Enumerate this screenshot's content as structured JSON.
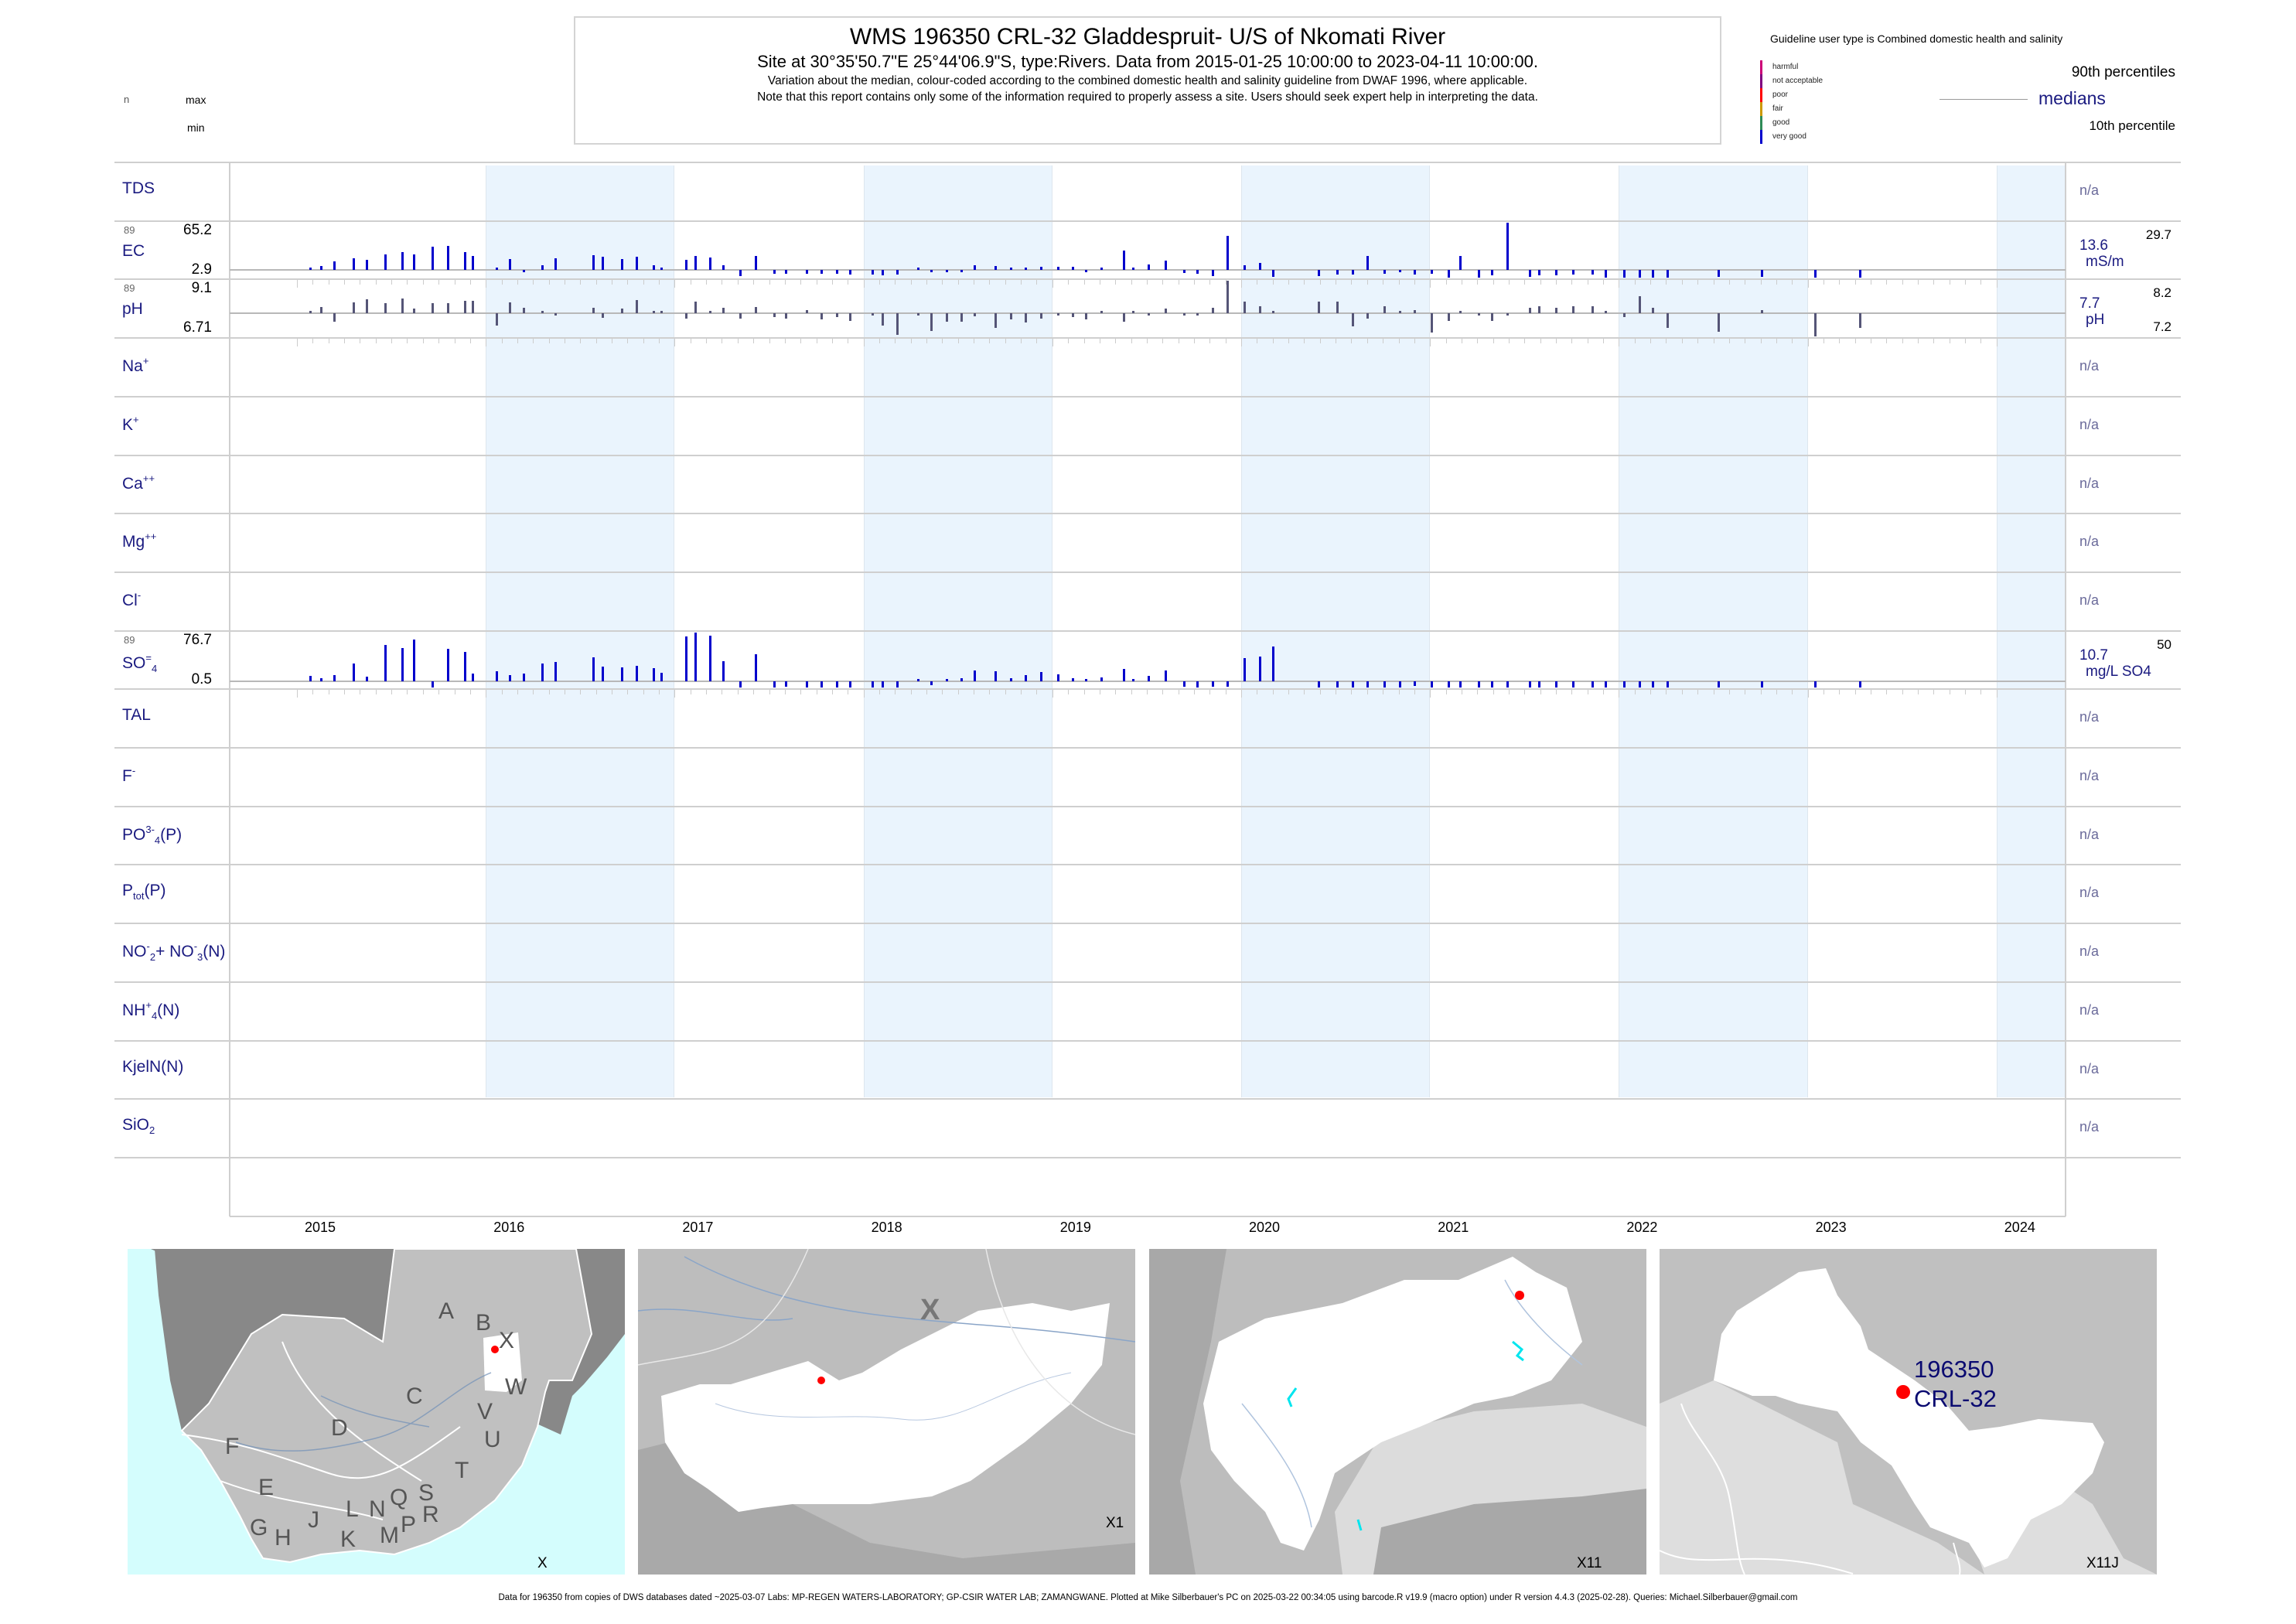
{
  "header": {
    "title": "WMS 196350 CRL-32 Gladdespruit- U/S of Nkomati River",
    "subtitle": "Site at 30°35'50.7\"E 25°44'06.9\"S, type:Rivers.  Data from 2015-01-25 10:00:00 to 2023-04-11 10:00:00.",
    "line3": "Variation about the median,  colour-coded according to the combined domestic health and salinity guideline from DWAF 1996, where applicable.",
    "line4": "Note that this report contains only some of the information required to properly assess a site. Users should seek expert help in interpreting the data."
  },
  "left_header": {
    "n": "n",
    "max": "max",
    "min": "min"
  },
  "legend": {
    "title": "Guideline user type is Combined domestic health and salinity",
    "classes": [
      {
        "label": "harmful",
        "color": "#cc0077"
      },
      {
        "label": "not acceptable",
        "color": "#800080"
      },
      {
        "label": "poor",
        "color": "#ff0000"
      },
      {
        "label": "fair",
        "color": "#cc9900"
      },
      {
        "label": "good",
        "color": "#2e8b57"
      },
      {
        "label": "very good",
        "color": "#0000cc"
      }
    ],
    "p90": "90th percentiles",
    "medians": "medians",
    "p10": "10th percentile"
  },
  "rows": [
    {
      "label": [
        {
          "t": "TDS"
        }
      ],
      "right": "n/a"
    },
    {
      "label": [
        {
          "t": "EC"
        }
      ],
      "n": "89",
      "max": "65.2",
      "min": "2.9",
      "median": "13.6",
      "unit": "mS/m",
      "p90": "29.7",
      "series": "EC"
    },
    {
      "label": [
        {
          "t": "pH"
        }
      ],
      "n": "89",
      "max": "9.1",
      "min": "6.71",
      "median": "7.7",
      "unit": "pH",
      "p90": "8.2",
      "p10": "7.2",
      "series": "pH"
    },
    {
      "label": [
        {
          "t": "Na"
        },
        {
          "t": "+",
          "s": "sup"
        }
      ],
      "right": "n/a"
    },
    {
      "label": [
        {
          "t": "K"
        },
        {
          "t": "+",
          "s": "sup"
        }
      ],
      "right": "n/a"
    },
    {
      "label": [
        {
          "t": "Ca"
        },
        {
          "t": "++",
          "s": "sup"
        }
      ],
      "right": "n/a"
    },
    {
      "label": [
        {
          "t": "Mg"
        },
        {
          "t": "++",
          "s": "sup"
        }
      ],
      "right": "n/a"
    },
    {
      "label": [
        {
          "t": "Cl"
        },
        {
          "t": "-",
          "s": "sup"
        }
      ],
      "right": "n/a"
    },
    {
      "label": [
        {
          "t": "SO"
        },
        {
          "t": "=",
          "s": "sup"
        },
        {
          "t": "4",
          "s": "sub"
        }
      ],
      "n": "89",
      "max": "76.7",
      "min": "0.5",
      "median": "10.7",
      "unit": "mg/L SO4",
      "p90": "50",
      "series": "SO4"
    },
    {
      "label": [
        {
          "t": "TAL"
        }
      ],
      "right": "n/a"
    },
    {
      "label": [
        {
          "t": "F"
        },
        {
          "t": "-",
          "s": "sup"
        }
      ],
      "right": "n/a"
    },
    {
      "label": [
        {
          "t": "PO"
        },
        {
          "t": "3-",
          "s": "sup"
        },
        {
          "t": "4",
          "s": "sub"
        },
        {
          "t": "(P)"
        }
      ],
      "right": "n/a"
    },
    {
      "label": [
        {
          "t": "P"
        },
        {
          "t": "tot",
          "s": "sub"
        },
        {
          "t": "(P)"
        }
      ],
      "right": "n/a"
    },
    {
      "label": [
        {
          "t": "NO"
        },
        {
          "t": "-",
          "s": "sup"
        },
        {
          "t": "2",
          "s": "sub"
        },
        {
          "t": "+ NO"
        },
        {
          "t": "-",
          "s": "sup"
        },
        {
          "t": "3",
          "s": "sub"
        },
        {
          "t": "(N)"
        }
      ],
      "right": "n/a"
    },
    {
      "label": [
        {
          "t": "NH"
        },
        {
          "t": "+",
          "s": "sup"
        },
        {
          "t": "4",
          "s": "sub"
        },
        {
          "t": "(N)"
        }
      ],
      "right": "n/a"
    },
    {
      "label": [
        {
          "t": "KjelN(N)"
        }
      ],
      "right": "n/a"
    },
    {
      "label": [
        {
          "t": "SiO"
        },
        {
          "t": "2",
          "s": "sub"
        }
      ],
      "right": "n/a"
    }
  ],
  "chart_data": {
    "type": "bar",
    "title": "WMS 196350 CRL-32 Gladdespruit- U/S of Nkomati River",
    "xlabel": "",
    "x_ticks": [
      "2015",
      "2016",
      "2017",
      "2018",
      "2019",
      "2020",
      "2021",
      "2022",
      "2023",
      "2024"
    ],
    "xlim": [
      2015,
      2024.2
    ],
    "shaded_years": [
      2016,
      2018,
      2020,
      2022,
      2024
    ],
    "bar_baseline": "median",
    "x": [
      2015.07,
      2015.13,
      2015.2,
      2015.3,
      2015.37,
      2015.47,
      2015.56,
      2015.62,
      2015.72,
      2015.8,
      2015.89,
      2015.93,
      2016.06,
      2016.13,
      2016.2,
      2016.3,
      2016.37,
      2016.57,
      2016.62,
      2016.72,
      2016.8,
      2016.89,
      2016.93,
      2017.06,
      2017.11,
      2017.19,
      2017.26,
      2017.35,
      2017.43,
      2017.53,
      2017.59,
      2017.7,
      2017.78,
      2017.86,
      2017.93,
      2018.05,
      2018.1,
      2018.18,
      2018.29,
      2018.36,
      2018.44,
      2018.52,
      2018.59,
      2018.7,
      2018.78,
      2018.86,
      2018.94,
      2019.03,
      2019.11,
      2019.18,
      2019.26,
      2019.38,
      2019.43,
      2019.51,
      2019.6,
      2019.7,
      2019.77,
      2019.85,
      2019.93,
      2020.02,
      2020.1,
      2020.17,
      2020.41,
      2020.51,
      2020.59,
      2020.67,
      2020.76,
      2020.84,
      2020.92,
      2021.01,
      2021.1,
      2021.16,
      2021.26,
      2021.33,
      2021.41,
      2021.53,
      2021.58,
      2021.67,
      2021.76,
      2021.86,
      2021.93,
      2022.03,
      2022.11,
      2022.18,
      2022.26,
      2022.53,
      2022.76,
      2023.04,
      2023.28
    ],
    "series": [
      {
        "name": "EC",
        "unit": "mS/m",
        "color": "#0000cc",
        "median": 13.6,
        "min": 2.9,
        "max": 65.2,
        "values": [
          15.0,
          17.7,
          23.1,
          26.6,
          25.0,
          30.4,
          33.2,
          30.4,
          38.6,
          39.9,
          33.2,
          28.5,
          15.5,
          25.3,
          10.7,
          18.8,
          26.6,
          29.9,
          27.7,
          25.3,
          27.7,
          18.8,
          15.0,
          24.5,
          28.8,
          27.4,
          19.0,
          5.8,
          28.5,
          8.1,
          8.1,
          8.1,
          8.1,
          8.7,
          7.5,
          7.2,
          6.1,
          7.0,
          15.0,
          10.1,
          11.9,
          12.4,
          18.8,
          17.9,
          15.0,
          15.8,
          17.1,
          17.1,
          17.1,
          10.7,
          16.3,
          34.8,
          14.4,
          19.6,
          23.6,
          9.8,
          8.4,
          5.8,
          50.3,
          19.0,
          21.2,
          4.3,
          4.9,
          7.2,
          7.8,
          28.8,
          8.4,
          11.6,
          7.0,
          8.1,
          2.9,
          28.5,
          3.8,
          6.4,
          65.2,
          4.6,
          6.4,
          6.7,
          7.2,
          7.8,
          2.9,
          3.5,
          3.0,
          3.5,
          3.0,
          4.1,
          4.6,
          3.5,
          3.2
        ]
      },
      {
        "name": "pH",
        "unit": "pH",
        "color": "#555577",
        "median": 7.7,
        "min": 6.71,
        "max": 9.1,
        "values": [
          7.76,
          7.97,
          7.34,
          8.18,
          8.31,
          8.13,
          8.34,
          7.92,
          8.16,
          8.16,
          8.25,
          8.25,
          7.18,
          8.18,
          7.94,
          7.8,
          7.62,
          7.94,
          7.52,
          7.9,
          8.29,
          7.77,
          7.74,
          7.47,
          8.21,
          7.76,
          7.93,
          7.47,
          7.98,
          7.53,
          7.47,
          7.84,
          7.44,
          7.53,
          7.39,
          7.62,
          7.18,
          6.77,
          7.63,
          6.96,
          7.34,
          7.34,
          7.59,
          7.08,
          7.44,
          7.31,
          7.47,
          7.62,
          7.53,
          7.44,
          7.74,
          7.34,
          7.77,
          7.66,
          7.9,
          7.66,
          7.66,
          7.94,
          9.1,
          8.22,
          8.02,
          7.73,
          8.22,
          8.22,
          7.16,
          7.47,
          8.02,
          7.73,
          7.84,
          6.87,
          7.37,
          7.73,
          7.66,
          7.37,
          7.66,
          7.93,
          8.02,
          7.93,
          8.02,
          8.02,
          7.73,
          7.55,
          8.43,
          7.93,
          7.07,
          6.9,
          7.86,
          6.71,
          7.07
        ]
      },
      {
        "name": "SO4",
        "unit": "mg/L SO4",
        "color": "#0000cc",
        "median": 10.7,
        "min": 0.5,
        "max": 76.7,
        "values": [
          18.4,
          15.4,
          19.7,
          34.5,
          17.4,
          59.6,
          55.6,
          66.6,
          1.2,
          54.6,
          50.6,
          21.4,
          25.1,
          19.7,
          21.1,
          34.5,
          36.5,
          43.5,
          31.1,
          29.5,
          31.5,
          28.8,
          22.1,
          70.7,
          76.7,
          72.4,
          38.5,
          0.5,
          46.9,
          0.9,
          1.9,
          0.5,
          0.5,
          0.5,
          0.5,
          0.5,
          0.5,
          0.5,
          12.0,
          4.4,
          11.7,
          15.4,
          25.4,
          24.4,
          15.4,
          19.1,
          23.4,
          20.1,
          15.4,
          11.7,
          16.4,
          27.5,
          12.0,
          18.7,
          25.8,
          1.9,
          0.5,
          2.6,
          2.6,
          42.5,
          44.5,
          57.6,
          0.5,
          0.5,
          0.5,
          0.5,
          0.5,
          0.5,
          3.7,
          0.5,
          0.5,
          0.5,
          0.5,
          0.5,
          0.5,
          0.5,
          0.5,
          0.5,
          0.5,
          0.5,
          0.5,
          0.5,
          0.5,
          0.5,
          0.5,
          0.5,
          0.5,
          0.5,
          0.5
        ]
      }
    ]
  },
  "maps": [
    {
      "caption": "X",
      "region_labels": [
        "A",
        "B",
        "X",
        "C",
        "D",
        "W",
        "V",
        "U",
        "T",
        "F",
        "E",
        "S",
        "Q",
        "N",
        "L",
        "R",
        "P",
        "J",
        "G",
        "H",
        "K",
        "M"
      ]
    },
    {
      "caption": "X1",
      "big_label": "X"
    },
    {
      "caption": "X11"
    },
    {
      "caption": "X11J",
      "site_id": "196350",
      "site_name": "CRL-32"
    }
  ],
  "footer": "Data for 196350 from copies of DWS databases dated ~2025-03-07 Labs: MP-REGEN WATERS-LABORATORY; GP-CSIR WATER LAB; ZAMANGWANE. Plotted at Mike Silberbauer's PC on 2025-03-22 00:34:05 using barcode.R v19.9 (macro option) under R version 4.4.3 (2025-02-28). Queries: Michael.Silberbauer@gmail.com"
}
